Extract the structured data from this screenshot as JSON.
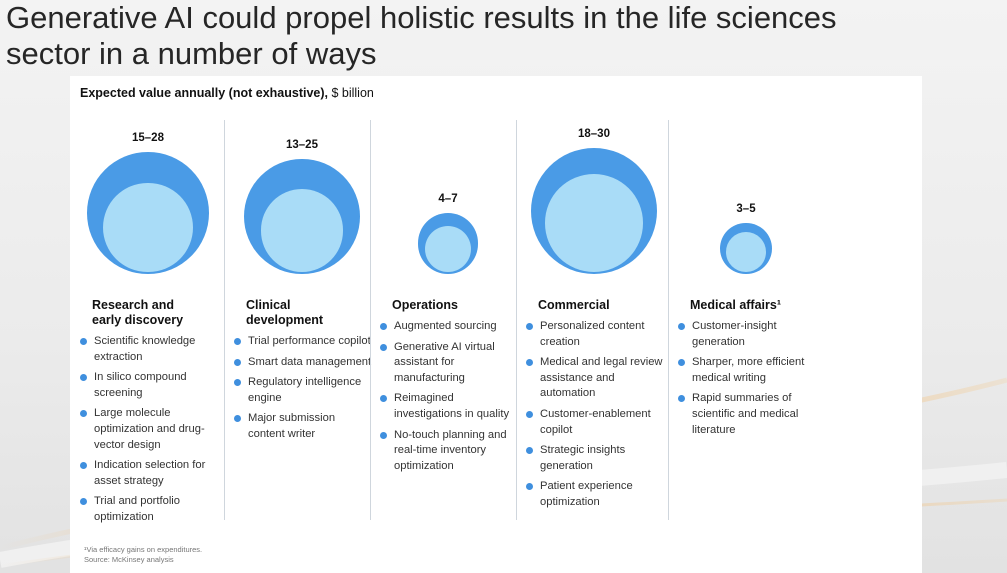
{
  "slide": {
    "title_line1": "Generative AI could propel holistic results in the life sciences",
    "title_line2": "sector in a number of ways"
  },
  "panel": {
    "subtitle_bold": "Expected value annually (not exhaustive),",
    "subtitle_unit": " $ billion",
    "footnote_1": "¹Via efficacy gains on expenditures.",
    "footnote_2": "Source: McKinsey analysis"
  },
  "colors": {
    "outer_circle": "#4a9be6",
    "inner_circle": "#a9dcf7",
    "bullet": "#3f8fde",
    "divider": "#cfd6dd"
  },
  "chart_data": {
    "type": "bubble",
    "unit": "$ billion",
    "categories": [
      {
        "name": "Research and early discovery",
        "heading_lines": [
          "Research and",
          "early discovery"
        ],
        "value_label": "15–28",
        "low": 15,
        "high": 28,
        "bullets": [
          "Scientific knowledge extraction",
          "In silico compound screening",
          "Large molecule optimization and drug-vector design",
          "Indication selection for asset strategy",
          "Trial and portfolio optimization"
        ]
      },
      {
        "name": "Clinical development",
        "heading_lines": [
          "Clinical",
          "development"
        ],
        "value_label": "13–25",
        "low": 13,
        "high": 25,
        "bullets": [
          "Trial performance copilot",
          "Smart data management",
          "Regulatory intelligence engine",
          "Major submission content writer"
        ]
      },
      {
        "name": "Operations",
        "heading_lines": [
          "Operations"
        ],
        "value_label": "4–7",
        "low": 4,
        "high": 7,
        "bullets": [
          "Augmented sourcing",
          "Generative AI virtual assistant for manufacturing",
          "Reimagined investigations in quality",
          "No-touch planning and real-time inventory optimization"
        ]
      },
      {
        "name": "Commercial",
        "heading_lines": [
          "Commercial"
        ],
        "value_label": "18–30",
        "low": 18,
        "high": 30,
        "bullets": [
          "Personalized content creation",
          "Medical and legal review assistance and automation",
          "Customer-enablement copilot",
          "Strategic insights generation",
          "Patient experience optimization"
        ]
      },
      {
        "name": "Medical affairs",
        "heading_lines": [
          "Medical affairs¹"
        ],
        "value_label": "3–5",
        "low": 3,
        "high": 5,
        "bullets": [
          "Customer-insight generation",
          "Sharper, more efficient medical writing",
          "Rapid summaries of scientific and medical literature"
        ]
      }
    ]
  }
}
